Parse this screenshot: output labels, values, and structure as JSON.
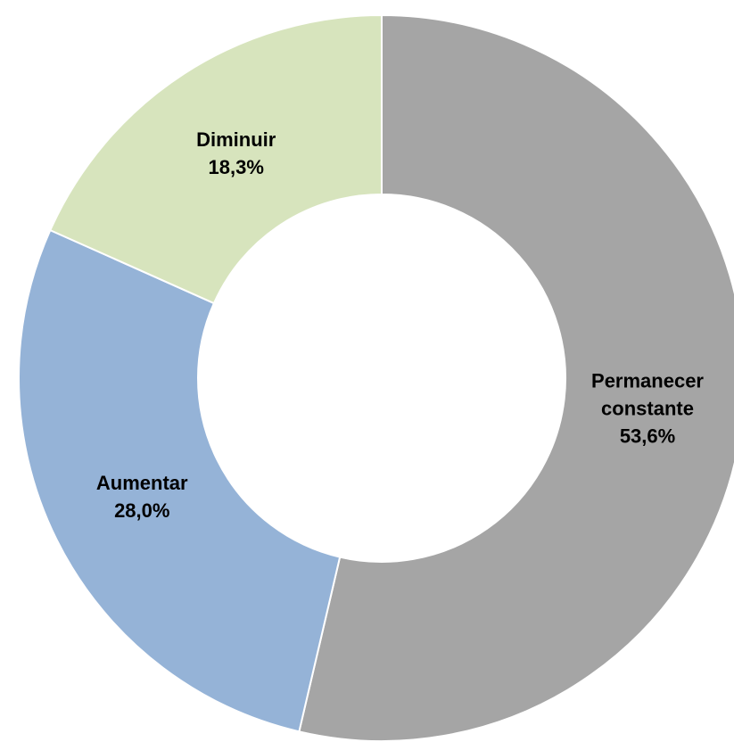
{
  "chart_data": {
    "type": "donut",
    "categories": [
      "Permanecer constante",
      "Aumentar",
      "Diminuir"
    ],
    "values": [
      53.6,
      28.0,
      18.3
    ],
    "value_labels": [
      "53,6%",
      "28,0%",
      "18,3%"
    ],
    "colors": [
      "#a5a5a5",
      "#95b3d7",
      "#d7e4bd"
    ]
  }
}
